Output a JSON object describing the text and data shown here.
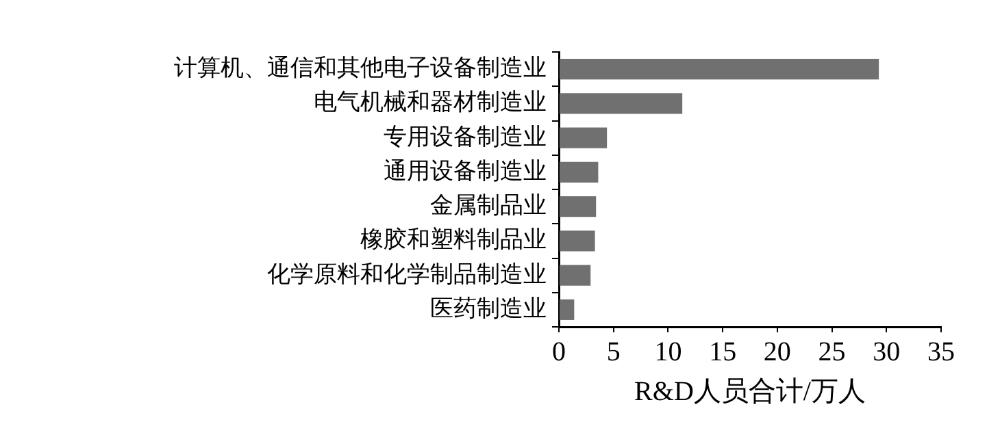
{
  "chart_data": {
    "type": "bar",
    "orientation": "horizontal",
    "categories": [
      "计算机、通信和其他电子设备制造业",
      "电气机械和器材制造业",
      "专用设备制造业",
      "通用设备制造业",
      "金属制品业",
      "橡胶和塑料制品业",
      "化学原料和化学制品制造业",
      "医药制造业"
    ],
    "values": [
      29.3,
      11.3,
      4.4,
      3.6,
      3.4,
      3.3,
      2.9,
      1.4
    ],
    "color": "#707070",
    "xlim": [
      0,
      35
    ],
    "xticks": [
      0,
      5,
      10,
      15,
      20,
      25,
      30,
      35
    ],
    "xlabel": "R&D人员合计/万人",
    "grid": false,
    "legend": false
  }
}
